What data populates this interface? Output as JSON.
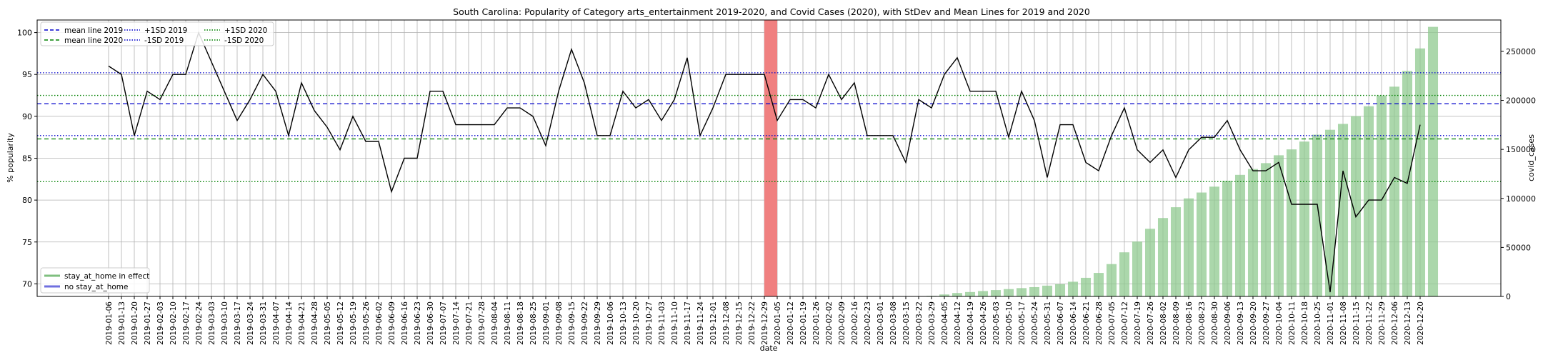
{
  "chart_data": {
    "type": "line",
    "title": "South Carolina: Popularity of Category arts_entertainment 2019-2020, and Covid Cases (2020), with StDev and Mean Lines for 2019 and 2020",
    "xlabel": "date",
    "ylabel": "% popularity",
    "ylabel_right": "covid_cases",
    "ylim": [
      68.5,
      101.5
    ],
    "ylim_right": [
      0,
      282000
    ],
    "yticks": [
      70,
      75,
      80,
      85,
      90,
      95,
      100
    ],
    "yticks_right": [
      0,
      50000,
      100000,
      150000,
      200000,
      250000
    ],
    "yticks_right_labels": [
      "0",
      "50000",
      "100000",
      "150000",
      "200000",
      "250000"
    ],
    "grid": true,
    "x": [
      "2019-01-06",
      "2019-01-13",
      "2019-01-20",
      "2019-01-27",
      "2019-02-03",
      "2019-02-10",
      "2019-02-17",
      "2019-02-24",
      "2019-03-03",
      "2019-03-10",
      "2019-03-17",
      "2019-03-24",
      "2019-03-31",
      "2019-04-07",
      "2019-04-14",
      "2019-04-21",
      "2019-04-28",
      "2019-05-05",
      "2019-05-12",
      "2019-05-19",
      "2019-05-26",
      "2019-06-02",
      "2019-06-09",
      "2019-06-16",
      "2019-06-23",
      "2019-06-30",
      "2019-07-07",
      "2019-07-14",
      "2019-07-21",
      "2019-07-28",
      "2019-08-04",
      "2019-08-11",
      "2019-08-18",
      "2019-08-25",
      "2019-09-01",
      "2019-09-08",
      "2019-09-15",
      "2019-09-22",
      "2019-09-29",
      "2019-10-06",
      "2019-10-13",
      "2019-10-20",
      "2019-10-27",
      "2019-11-03",
      "2019-11-10",
      "2019-11-17",
      "2019-11-24",
      "2019-12-01",
      "2019-12-08",
      "2019-12-15",
      "2019-12-22",
      "2019-12-29",
      "2020-01-05",
      "2020-01-12",
      "2020-01-19",
      "2020-01-26",
      "2020-02-02",
      "2020-02-09",
      "2020-02-16",
      "2020-02-23",
      "2020-03-01",
      "2020-03-08",
      "2020-03-15",
      "2020-03-22",
      "2020-03-29",
      "2020-04-05",
      "2020-04-12",
      "2020-04-19",
      "2020-04-26",
      "2020-05-03",
      "2020-05-10",
      "2020-05-17",
      "2020-05-24",
      "2020-05-31",
      "2020-06-07",
      "2020-06-14",
      "2020-06-21",
      "2020-06-28",
      "2020-07-05",
      "2020-07-12",
      "2020-07-19",
      "2020-07-26",
      "2020-08-02",
      "2020-08-09",
      "2020-08-16",
      "2020-08-23",
      "2020-08-30",
      "2020-09-06",
      "2020-09-13",
      "2020-09-20",
      "2020-09-27",
      "2020-10-04",
      "2020-10-11",
      "2020-10-18",
      "2020-10-25",
      "2020-11-01",
      "2020-11-08",
      "2020-11-15",
      "2020-11-22",
      "2020-11-29",
      "2020-12-06",
      "2020-12-13",
      "2020-12-20"
    ],
    "series": [
      {
        "name": "popularity",
        "color": "#000000",
        "values": [
          96,
          95,
          87.7,
          93,
          92,
          95,
          95,
          100,
          96.5,
          93,
          89.5,
          92,
          95,
          93,
          87.7,
          94,
          90.7,
          88.7,
          86,
          90,
          87,
          87,
          81,
          85,
          85,
          93,
          93,
          89,
          89,
          89,
          89,
          91,
          91,
          90,
          86.5,
          93,
          98,
          94,
          87.7,
          87.7,
          93,
          91,
          92,
          89.5,
          92,
          97,
          87.7,
          91,
          95,
          95,
          95,
          95,
          89.5,
          92,
          92,
          91,
          95,
          92,
          94,
          87.7,
          87.7,
          87.7,
          84.5,
          92,
          91,
          95,
          97,
          93,
          93,
          93,
          87.5,
          93,
          89.5,
          82.7,
          89,
          89,
          84.5,
          83.5,
          87.7,
          91,
          86,
          84.5,
          86,
          82.7,
          86,
          87.5,
          87.5,
          89.5,
          86,
          83.5,
          83.5,
          84.5,
          79.5,
          79.5,
          79.5,
          69,
          83.5,
          78,
          80,
          80,
          82.7,
          82,
          89
        ]
      }
    ],
    "covid_cases": [
      0,
      0,
      0,
      0,
      0,
      0,
      0,
      0,
      0,
      0,
      0,
      0,
      0,
      0,
      0,
      0,
      0,
      0,
      0,
      0,
      0,
      0,
      0,
      0,
      0,
      0,
      0,
      0,
      0,
      0,
      0,
      0,
      0,
      0,
      0,
      0,
      0,
      0,
      0,
      0,
      0,
      0,
      0,
      0,
      0,
      0,
      0,
      0,
      0,
      0,
      0,
      0,
      0,
      0,
      0,
      0,
      0,
      0,
      0,
      0,
      0,
      0,
      0,
      0,
      600,
      2000,
      3500,
      4500,
      5500,
      6500,
      7500,
      8500,
      9500,
      11000,
      12500,
      15000,
      19000,
      24000,
      33000,
      45000,
      56000,
      69000,
      80000,
      91000,
      100000,
      106000,
      112000,
      118000,
      124000,
      130000,
      136000,
      144000,
      150000,
      158000,
      165000,
      170000,
      176000,
      184000,
      194000,
      205000,
      214000,
      230000,
      253000,
      275000
    ],
    "reference_lines": [
      {
        "name": "mean line 2019",
        "value": 91.5,
        "color": "#0000cc",
        "style": "dashed"
      },
      {
        "name": "mean line 2020",
        "value": 87.3,
        "color": "#008000",
        "style": "dashed"
      },
      {
        "name": "+1SD 2019",
        "value": 95.2,
        "color": "#0000cc",
        "style": "dotted"
      },
      {
        "name": "-1SD 2019",
        "value": 87.7,
        "color": "#0000cc",
        "style": "dotted"
      },
      {
        "name": "+1SD 2020",
        "value": 92.5,
        "color": "#008000",
        "style": "dotted"
      },
      {
        "name": "-1SD 2020",
        "value": 82.2,
        "color": "#008000",
        "style": "dotted"
      }
    ],
    "highlight_span": {
      "from": "2019-12-29",
      "to": "2020-01-05",
      "color": "#f08080"
    },
    "bar_color": "#8fc98f",
    "legend_top": [
      [
        "mean line 2019",
        "mean line 2020"
      ],
      [
        "+1SD 2019",
        "-1SD 2019"
      ],
      [
        "+1SD 2020",
        "-1SD 2020"
      ]
    ],
    "legend_bottom": [
      {
        "label": "stay_at_home in effect",
        "color": "#7fbf7f"
      },
      {
        "label": "no stay_at_home",
        "color": "#6f6fdf"
      }
    ],
    "legend_top_placement": "upper-left",
    "legend_bottom_placement": "lower-left"
  }
}
